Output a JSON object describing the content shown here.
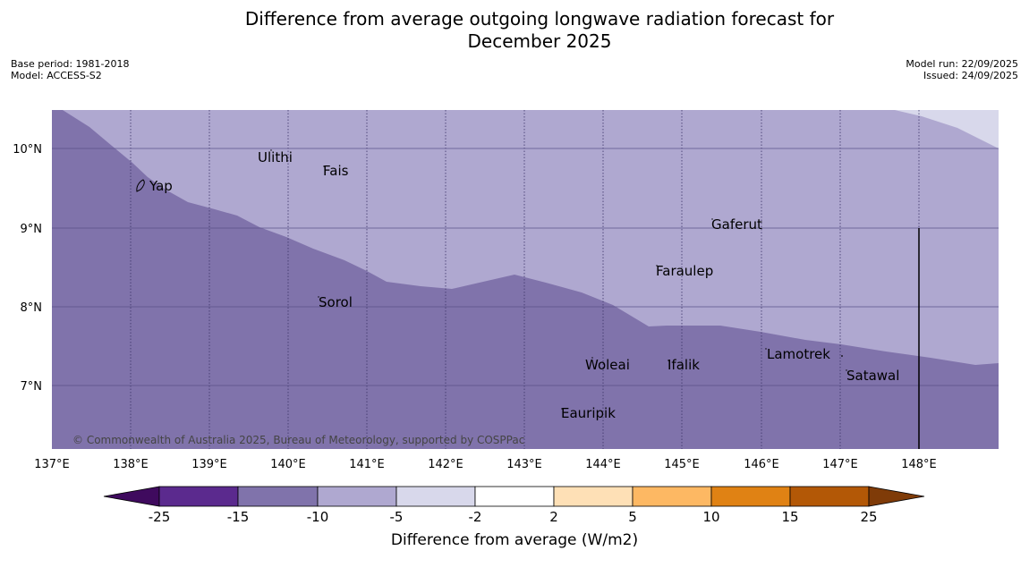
{
  "header": {
    "title_line1": "Difference from average outgoing longwave radiation forecast for",
    "title_line2": "December 2025",
    "base_period": "Base period: 1981-2018",
    "model": "Model: ACCESS-S2",
    "model_run": "Model run: 22/09/2025",
    "issued": "Issued: 24/09/2025"
  },
  "map": {
    "lon_labels": [
      "137°E",
      "138°E",
      "139°E",
      "140°E",
      "141°E",
      "142°E",
      "143°E",
      "144°E",
      "145°E",
      "146°E",
      "147°E",
      "148°E"
    ],
    "lat_labels": [
      "10°N",
      "9°N",
      "8°N",
      "7°N"
    ],
    "places": [
      "Ulithi",
      "Fais",
      "Yap",
      "Gaferut",
      "Faraulep",
      "Sorol",
      "Lamotrek",
      "Woleai",
      "Ifalik",
      "Satawal",
      "Eauripik"
    ],
    "copyright": "© Commonwealth of Australia 2025, Bureau of Meteorology, supported by COSPPac",
    "colors": {
      "band_minus15_minus10": "#8073ab",
      "band_minus10_minus5": "#afa8d0",
      "band_minus5_minus2": "#d8d8eb"
    }
  },
  "colorbar": {
    "title": "Difference from average (W/m2)",
    "tick_labels": [
      "-25",
      "-15",
      "-10",
      "-5",
      "-2",
      "2",
      "5",
      "10",
      "15",
      "25"
    ],
    "colors": [
      "#3f0a5e",
      "#5b2a8e",
      "#8073ab",
      "#afa8d0",
      "#d8d8eb",
      "#ffffff",
      "#fee0b6",
      "#fdb863",
      "#e08214",
      "#b35806",
      "#7f3b08"
    ]
  }
}
